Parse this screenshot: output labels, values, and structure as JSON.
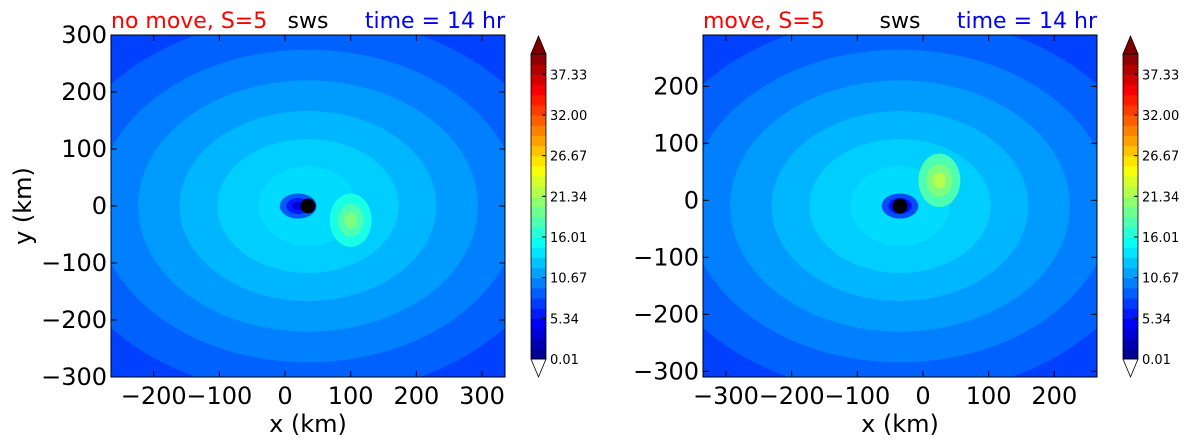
{
  "chart_data": [
    {
      "type": "heatmap",
      "variant": "filled-contour",
      "title_left": "no move, S=5",
      "title_center": "sws",
      "title_right": "time = 14 hr",
      "title_colors": {
        "left": "#ff0000",
        "center": "#000000",
        "right": "#0000ff"
      },
      "xlabel": "x (km)",
      "ylabel": "y (km)",
      "xlim": [
        -265,
        335
      ],
      "ylim": [
        -300,
        300
      ],
      "xticks": [
        -200,
        -100,
        0,
        100,
        200,
        300
      ],
      "xtick_labels": [
        "−200",
        "−100",
        "0",
        "100",
        "200",
        "300"
      ],
      "yticks": [
        -300,
        -200,
        -100,
        0,
        100,
        200,
        300
      ],
      "ytick_labels": [
        "−300",
        "−200",
        "−100",
        "0",
        "100",
        "200",
        "300"
      ],
      "marker": {
        "x": 35,
        "y": 0,
        "color": "#000000"
      },
      "field": {
        "background_rings": [
          7.5,
          8.8,
          10.0,
          11.1,
          12.2,
          13.1
        ],
        "core_value": 13.6,
        "eye": {
          "x": 20,
          "y": 0,
          "value": 3.5
        },
        "maximum": {
          "x": 100,
          "y": -25,
          "value": 20
        }
      },
      "colorbar": {
        "min": 0.01,
        "max": 40,
        "ticks": [
          0.01,
          5.34,
          10.67,
          16.01,
          21.34,
          26.67,
          32.0,
          37.33
        ],
        "tick_labels": [
          "0.01",
          "5.34",
          "10.67",
          "16.01",
          "21.34",
          "26.67",
          "32.00",
          "37.33"
        ],
        "extend": "both"
      }
    },
    {
      "type": "heatmap",
      "variant": "filled-contour",
      "title_left": "move, S=5",
      "title_center": "sws",
      "title_right": "time = 14 hr",
      "title_colors": {
        "left": "#ff0000",
        "center": "#000000",
        "right": "#0000ff"
      },
      "xlabel": "x (km)",
      "ylabel": "",
      "xlim": [
        -335,
        265
      ],
      "ylim": [
        -310,
        290
      ],
      "xticks": [
        -300,
        -200,
        -100,
        0,
        100,
        200
      ],
      "xtick_labels": [
        "−300",
        "−200",
        "−100",
        "0",
        "100",
        "200"
      ],
      "yticks": [
        -300,
        -200,
        -100,
        0,
        100,
        200
      ],
      "ytick_labels": [
        "−300",
        "−200",
        "−100",
        "0",
        "100",
        "200"
      ],
      "marker": {
        "x": -35,
        "y": -10,
        "color": "#000000"
      },
      "field": {
        "background_rings": [
          7.5,
          8.8,
          10.0,
          11.1,
          12.2,
          13.1
        ],
        "core_value": 13.6,
        "eye": {
          "x": -35,
          "y": -10,
          "value": 3.0
        },
        "maximum": {
          "x": 25,
          "y": 35,
          "value": 22
        }
      },
      "colorbar": {
        "min": 0.01,
        "max": 40,
        "ticks": [
          0.01,
          5.34,
          10.67,
          16.01,
          21.34,
          26.67,
          32.0,
          37.33
        ],
        "tick_labels": [
          "0.01",
          "5.34",
          "10.67",
          "16.01",
          "21.34",
          "26.67",
          "32.00",
          "37.33"
        ],
        "extend": "both"
      }
    }
  ]
}
